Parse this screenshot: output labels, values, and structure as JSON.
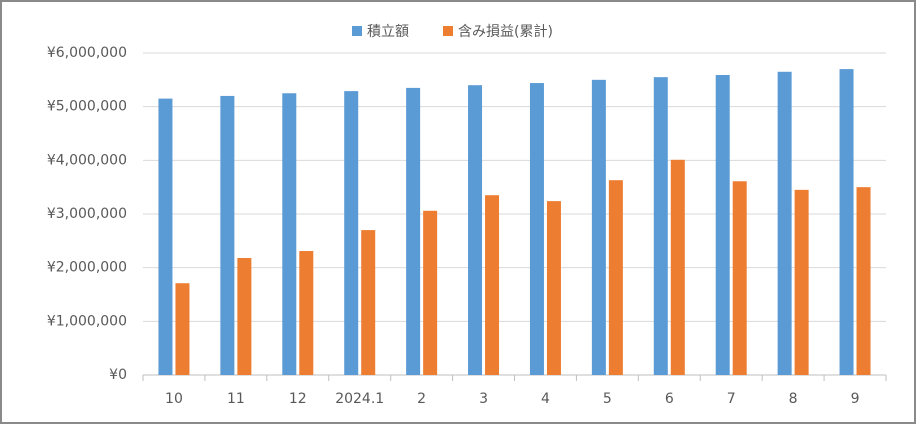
{
  "chart_data": {
    "type": "bar",
    "categories": [
      "10",
      "11",
      "12",
      "2024.1",
      "2",
      "3",
      "4",
      "5",
      "6",
      "7",
      "8",
      "9"
    ],
    "series": [
      {
        "name": "積立額",
        "color": "#5b9bd5",
        "values": [
          5150000,
          5200000,
          5250000,
          5290000,
          5350000,
          5400000,
          5440000,
          5500000,
          5550000,
          5590000,
          5650000,
          5700000
        ]
      },
      {
        "name": "含み損益(累計)",
        "color": "#ed7d31",
        "values": [
          1710000,
          2180000,
          2310000,
          2700000,
          3060000,
          3350000,
          3240000,
          3630000,
          4010000,
          3610000,
          3450000,
          3500000
        ]
      }
    ],
    "ylim": [
      0,
      6000000
    ],
    "yticks": [
      {
        "value": 0,
        "label": "¥0"
      },
      {
        "value": 1000000,
        "label": "¥1,000,000"
      },
      {
        "value": 2000000,
        "label": "¥2,000,000"
      },
      {
        "value": 3000000,
        "label": "¥3,000,000"
      },
      {
        "value": 4000000,
        "label": "¥4,000,000"
      },
      {
        "value": 5000000,
        "label": "¥5,000,000"
      },
      {
        "value": 6000000,
        "label": "¥6,000,000"
      }
    ],
    "grid": true,
    "legend": "top"
  }
}
